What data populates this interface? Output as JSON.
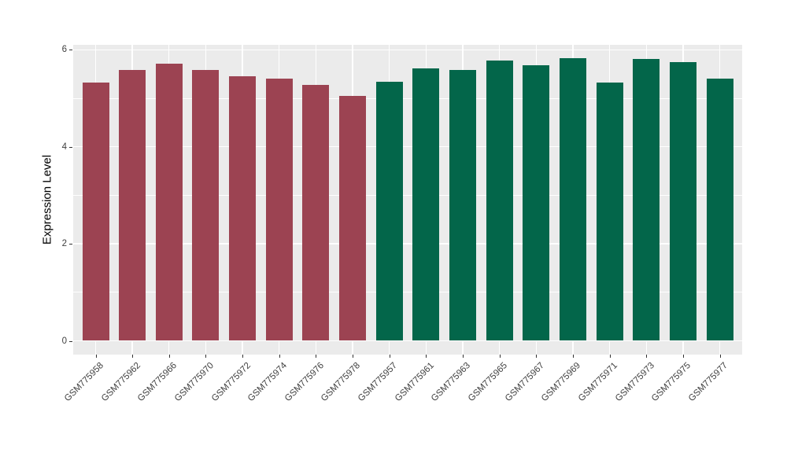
{
  "chart_data": {
    "type": "bar",
    "title": "",
    "xlabel": "",
    "ylabel": "Expression Level",
    "ylim": [
      0,
      6.1
    ],
    "yticks": [
      0,
      2,
      4,
      6
    ],
    "ytick_labels": [
      "0",
      "2",
      "4",
      "6"
    ],
    "yminor": [
      1,
      3,
      5
    ],
    "grid": "on",
    "legend_position": "none",
    "panel_background": "#EBEBEB",
    "gridline_color": "#FFFFFF",
    "categories": [
      "GSM775958",
      "GSM775962",
      "GSM775966",
      "GSM775970",
      "GSM775972",
      "GSM775974",
      "GSM775976",
      "GSM775978",
      "GSM775957",
      "GSM775961",
      "GSM775963",
      "GSM775965",
      "GSM775967",
      "GSM775969",
      "GSM775971",
      "GSM775973",
      "GSM775975",
      "GSM775977"
    ],
    "values": [
      5.33,
      5.59,
      5.72,
      5.58,
      5.45,
      5.4,
      5.27,
      5.05,
      5.34,
      5.61,
      5.58,
      5.77,
      5.68,
      5.82,
      5.33,
      5.81,
      5.75,
      5.41
    ],
    "groups": [
      "group1",
      "group1",
      "group1",
      "group1",
      "group1",
      "group1",
      "group1",
      "group1",
      "group2",
      "group2",
      "group2",
      "group2",
      "group2",
      "group2",
      "group2",
      "group2",
      "group2",
      "group2"
    ],
    "group_colors": {
      "group1": "#9C4352",
      "group2": "#03664A"
    }
  }
}
